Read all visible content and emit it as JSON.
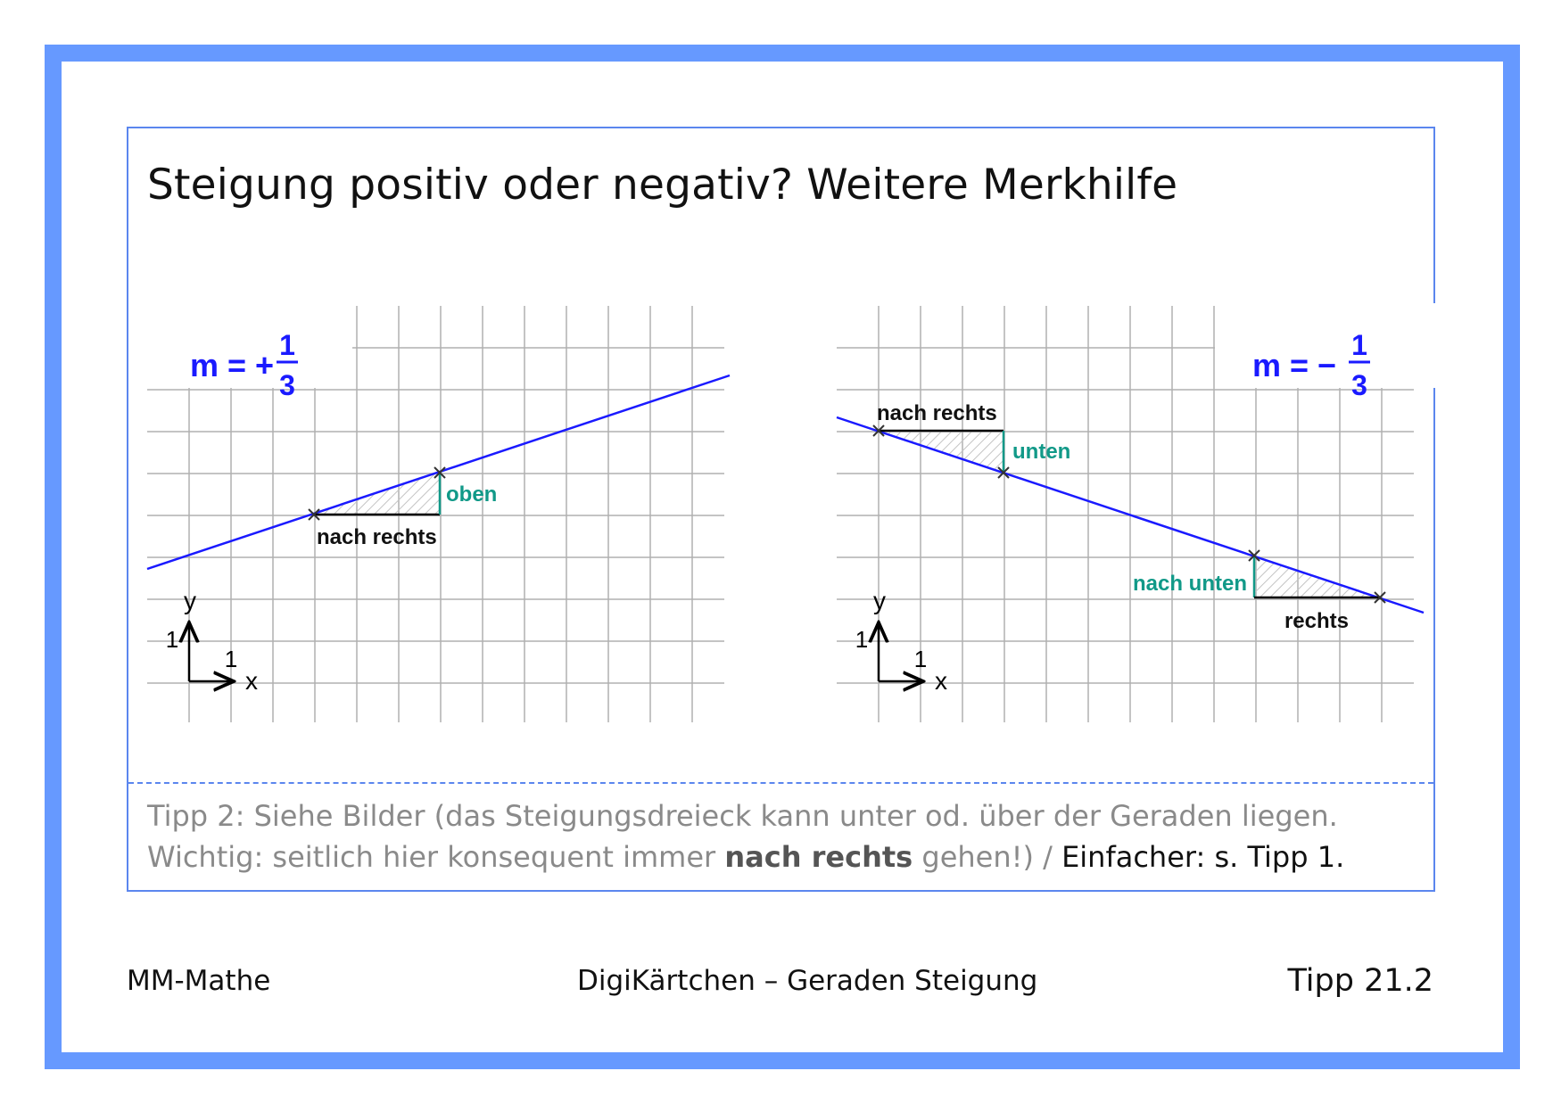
{
  "title": "Steigung positiv oder negativ? Weitere Merkhilfe",
  "left_graph": {
    "m_label": "m = +",
    "frac_num": "1",
    "frac_den": "3",
    "horizontal_label": "nach rechts",
    "vertical_label": "oben",
    "axis_x": "x",
    "axis_y": "y",
    "tick_x": "1",
    "tick_y": "1"
  },
  "right_graph": {
    "m_label": "m = −",
    "frac_num": "1",
    "frac_den": "3",
    "top_horizontal_label": "nach rechts",
    "top_vertical_label": "unten",
    "bottom_vertical_label": "nach unten",
    "bottom_horizontal_label": "rechts",
    "axis_x": "x",
    "axis_y": "y",
    "tick_x": "1",
    "tick_y": "1"
  },
  "tip": {
    "line1": "Tipp 2:  Siehe Bilder (das Steigungsdreieck kann unter od. über der Geraden liegen.",
    "line2_a": "Wichtig: seitlich hier konsequent immer ",
    "line2_em": "nach rechts",
    "line2_b": " gehen!) / ",
    "line2_c": "Einfacher: s. Tipp 1."
  },
  "footer": {
    "left": "MM-Mathe",
    "center": "DigiKärtchen – Geraden Steigung",
    "right": "Tipp 21.2"
  },
  "colors": {
    "frame": "#6699ff",
    "line": "#1a1aff",
    "rise": "#119988",
    "grid": "#aaaaaa"
  }
}
